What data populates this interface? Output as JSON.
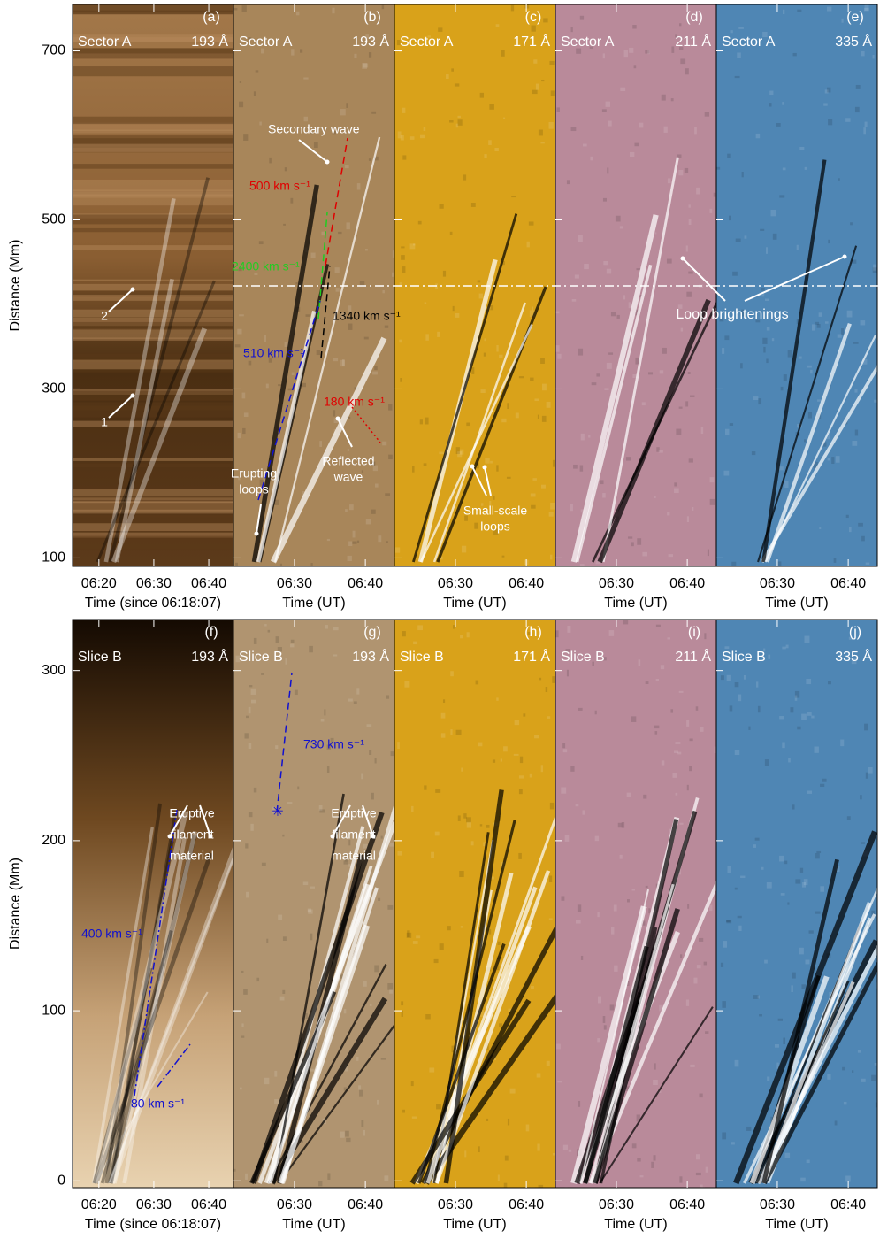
{
  "figure": {
    "rows": [
      {
        "ylabel": "Distance (Mm)",
        "ylim": [
          90,
          755
        ],
        "yticks": [
          100,
          300,
          500,
          700
        ],
        "panels": [
          {
            "id": "(a)",
            "region": "Sector A",
            "wavelength": "193 Å",
            "xlabel": "Time (since 06:18:07)",
            "xlim": [
              15.2,
              44.5
            ],
            "xticks": [
              {
                "value": 20,
                "label": "06:20"
              },
              {
                "value": 30,
                "label": "06:30"
              },
              {
                "value": 40,
                "label": "06:40"
              }
            ]
          },
          {
            "id": "(b)",
            "region": "Sector A",
            "wavelength": "193 Å",
            "xlabel": "Time (UT)",
            "xlim": [
              21.4,
              44.1
            ],
            "xticks": [
              {
                "value": 30,
                "label": "06:30"
              },
              {
                "value": 40,
                "label": "06:40"
              }
            ]
          },
          {
            "id": "(c)",
            "region": "Sector A",
            "wavelength": "171 Å",
            "xlabel": "Time (UT)",
            "xlim": [
              21.4,
              44.1
            ],
            "xticks": [
              {
                "value": 30,
                "label": "06:30"
              },
              {
                "value": 40,
                "label": "06:40"
              }
            ]
          },
          {
            "id": "(d)",
            "region": "Sector A",
            "wavelength": "211 Å",
            "xlabel": "Time (UT)",
            "xlim": [
              21.4,
              44.1
            ],
            "xticks": [
              {
                "value": 30,
                "label": "06:30"
              },
              {
                "value": 40,
                "label": "06:40"
              }
            ]
          },
          {
            "id": "(e)",
            "region": "Sector A",
            "wavelength": "335 Å",
            "xlabel": "Time (UT)",
            "xlim": [
              21.4,
              44.1
            ],
            "xticks": [
              {
                "value": 30,
                "label": "06:30"
              },
              {
                "value": 40,
                "label": "06:40"
              }
            ]
          }
        ]
      },
      {
        "ylabel": "Distance (Mm)",
        "ylim": [
          -4,
          330
        ],
        "yticks": [
          0,
          100,
          200,
          300
        ],
        "panels": [
          {
            "id": "(f)",
            "region": "Slice B",
            "wavelength": "193 Å",
            "xlabel": "Time (since 06:18:07)",
            "xlim": [
              15.2,
              44.5
            ],
            "xticks": [
              {
                "value": 20,
                "label": "06:20"
              },
              {
                "value": 30,
                "label": "06:30"
              },
              {
                "value": 40,
                "label": "06:40"
              }
            ]
          },
          {
            "id": "(g)",
            "region": "Slice B",
            "wavelength": "193 Å",
            "xlabel": "Time (UT)",
            "xlim": [
              21.4,
              44.1
            ],
            "xticks": [
              {
                "value": 30,
                "label": "06:30"
              },
              {
                "value": 40,
                "label": "06:40"
              }
            ]
          },
          {
            "id": "(h)",
            "region": "Slice B",
            "wavelength": "171 Å",
            "xlabel": "Time (UT)",
            "xlim": [
              21.4,
              44.1
            ],
            "xticks": [
              {
                "value": 30,
                "label": "06:30"
              },
              {
                "value": 40,
                "label": "06:40"
              }
            ]
          },
          {
            "id": "(i)",
            "region": "Slice B",
            "wavelength": "211 Å",
            "xlabel": "Time (UT)",
            "xlim": [
              21.4,
              44.1
            ],
            "xticks": [
              {
                "value": 30,
                "label": "06:30"
              },
              {
                "value": 40,
                "label": "06:40"
              }
            ]
          },
          {
            "id": "(j)",
            "region": "Slice B",
            "wavelength": "335 Å",
            "xlabel": "Time (UT)",
            "xlim": [
              21.4,
              44.1
            ],
            "xticks": [
              {
                "value": 30,
                "label": "06:30"
              },
              {
                "value": 40,
                "label": "06:40"
              }
            ]
          }
        ]
      }
    ],
    "annotations": [
      {
        "text": [
          "Secondary wave"
        ],
        "color": "#ffffff"
      },
      {
        "text": [
          "500 km s⁻¹"
        ],
        "color": "#e00000"
      },
      {
        "text": [
          "2400 km s⁻¹"
        ],
        "color": "#22cc22"
      },
      {
        "text": [
          "1340 km s⁻¹"
        ],
        "color": "#000000"
      },
      {
        "text": [
          "510 km s⁻¹"
        ],
        "color": "#1010d0"
      },
      {
        "text": [
          "180 km s⁻¹"
        ],
        "color": "#e00000"
      },
      {
        "text": [
          "Reflected",
          "wave"
        ],
        "color": "#ffffff"
      },
      {
        "text": [
          "Erupting",
          "loops"
        ],
        "color": "#ffffff"
      },
      {
        "text": [
          "Small-scale",
          "loops"
        ],
        "color": "#ffffff"
      },
      {
        "text": [
          "Loop brightenings"
        ],
        "color": "#ffffff"
      },
      {
        "text": [
          "1"
        ],
        "color": "#ffffff"
      },
      {
        "text": [
          "2"
        ],
        "color": "#ffffff"
      },
      {
        "text": [
          "Eruptive",
          "filament",
          "material"
        ],
        "color": "#ffffff"
      },
      {
        "text": [
          "Eruptive",
          "filament",
          "material"
        ],
        "color": "#ffffff"
      },
      {
        "text": [
          "400 km s⁻¹"
        ],
        "color": "#1010d0"
      },
      {
        "text": [
          "80 km s⁻¹"
        ],
        "color": "#1010d0"
      },
      {
        "text": [
          "730 km s⁻¹"
        ],
        "color": "#1010d0"
      }
    ]
  }
}
